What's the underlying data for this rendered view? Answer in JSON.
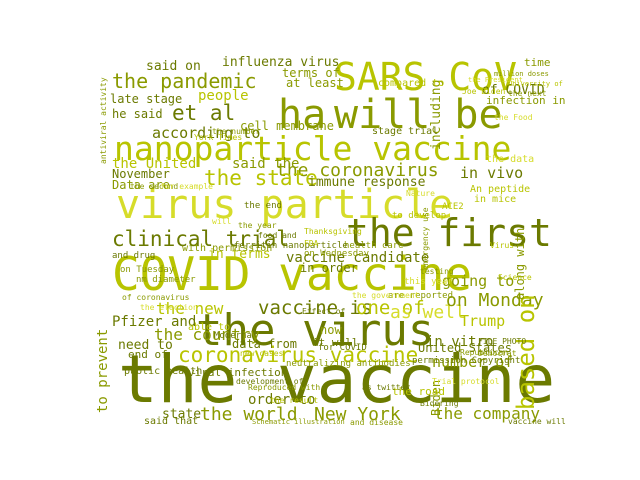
{
  "palette": {
    "background": "#ffffff",
    "dark_olive": "#6b7a00",
    "olive": "#8a9a00",
    "yellow_green": "#b8c400",
    "bright": "#d6dc2a"
  },
  "words": [
    {
      "text": "the vaccine",
      "color": "#6b7a00"
    },
    {
      "text": "COVID vaccine",
      "color": "#b8c400"
    },
    {
      "text": "virus particle",
      "color": "#d6dc2a"
    },
    {
      "text": "nanoparticle vaccine",
      "color": "#b8c400"
    },
    {
      "text": "the virus",
      "color": "#6b7a00"
    },
    {
      "text": "SARS CoV",
      "color": "#b8c400"
    },
    {
      "text": "will be",
      "color": "#8a9a00"
    },
    {
      "text": "ha",
      "color": "#8a9a00"
    },
    {
      "text": "the first",
      "color": "#6b7a00"
    },
    {
      "text": "clinical trial",
      "color": "#6b7a00"
    },
    {
      "text": "coronavirus vaccine",
      "color": "#b8c400"
    },
    {
      "text": "the pandemic",
      "color": "#8a9a00"
    },
    {
      "text": "the coronavirus",
      "color": "#8a9a00"
    },
    {
      "text": "et al",
      "color": "#6b7a00"
    },
    {
      "text": "the state",
      "color": "#b8c400"
    },
    {
      "text": "vaccine is",
      "color": "#6b7a00"
    },
    {
      "text": "one of",
      "color": "#b8c400"
    },
    {
      "text": "as well",
      "color": "#d6dc2a"
    },
    {
      "text": "the world",
      "color": "#8a9a00"
    },
    {
      "text": "New York",
      "color": "#8a9a00"
    },
    {
      "text": "the company",
      "color": "#8a9a00"
    },
    {
      "text": "on Monday",
      "color": "#8a9a00"
    },
    {
      "text": "the country",
      "color": "#8a9a00"
    },
    {
      "text": "vaccine candidate",
      "color": "#6b7a00"
    },
    {
      "text": "based on",
      "color": "#b8c400"
    },
    {
      "text": "going to",
      "color": "#8a9a00"
    },
    {
      "text": "the new",
      "color": "#b8c400"
    },
    {
      "text": "Pfizer and",
      "color": "#6b7a00"
    },
    {
      "text": "number of",
      "color": "#8a9a00"
    },
    {
      "text": "according to",
      "color": "#6b7a00"
    },
    {
      "text": "influenza virus",
      "color": "#6b7a00"
    },
    {
      "text": "said on",
      "color": "#6b7a00"
    },
    {
      "text": "said the",
      "color": "#8a9a00"
    },
    {
      "text": "in vivo",
      "color": "#6b7a00"
    },
    {
      "text": "in vitro",
      "color": "#6b7a00"
    },
    {
      "text": "immune response",
      "color": "#6b7a00"
    },
    {
      "text": "the United",
      "color": "#b8c400"
    },
    {
      "text": "United States",
      "color": "#6b7a00"
    },
    {
      "text": "to prevent",
      "color": "#8a9a00"
    },
    {
      "text": "need to",
      "color": "#6b7a00"
    },
    {
      "text": "late stage",
      "color": "#6b7a00"
    },
    {
      "text": "he said",
      "color": "#6b7a00"
    },
    {
      "text": "of COVID",
      "color": "#6b7a00"
    },
    {
      "text": "including",
      "color": "#8a9a00"
    },
    {
      "text": "cell membrane",
      "color": "#8a9a00"
    },
    {
      "text": "Trump",
      "color": "#b8c400"
    },
    {
      "text": "order to",
      "color": "#6b7a00"
    },
    {
      "text": "state",
      "color": "#6b7a00"
    },
    {
      "text": "at least",
      "color": "#8a9a00"
    },
    {
      "text": "terms of",
      "color": "#8a9a00"
    },
    {
      "text": "people",
      "color": "#b8c400"
    },
    {
      "text": "in order",
      "color": "#6b7a00"
    },
    {
      "text": "November",
      "color": "#6b7a00"
    },
    {
      "text": "Data are",
      "color": "#8a9a00"
    },
    {
      "text": "in terms",
      "color": "#b8c400"
    },
    {
      "text": "data from",
      "color": "#6b7a00"
    },
    {
      "text": "Biden",
      "color": "#8a9a00"
    },
    {
      "text": "the road",
      "color": "#b8c400"
    },
    {
      "text": "along with",
      "color": "#8a9a00"
    },
    {
      "text": "now",
      "color": "#8a9a00"
    },
    {
      "text": "it will",
      "color": "#6b7a00"
    },
    {
      "text": "end of",
      "color": "#6b7a00"
    },
    {
      "text": "viral infection",
      "color": "#6b7a00"
    },
    {
      "text": "public health",
      "color": "#6b7a00"
    },
    {
      "text": "said that",
      "color": "#6b7a00"
    },
    {
      "text": "with permission",
      "color": "#8a9a00"
    },
    {
      "text": "time",
      "color": "#8a9a00"
    },
    {
      "text": "infection in",
      "color": "#8a9a00"
    },
    {
      "text": "stage trial",
      "color": "#6b7a00"
    },
    {
      "text": "compared to",
      "color": "#b8c400"
    },
    {
      "text": "the data",
      "color": "#d6dc2a"
    },
    {
      "text": "nm diameter",
      "color": "#8a9a00"
    },
    {
      "text": "for COVID",
      "color": "#6b7a00"
    },
    {
      "text": "neutralizing antibodies",
      "color": "#8a9a00"
    },
    {
      "text": "on Wednesday",
      "color": "#8a9a00"
    },
    {
      "text": "An peptide",
      "color": "#b8c400"
    },
    {
      "text": "in mice",
      "color": "#b8c400"
    },
    {
      "text": "permission Copyright",
      "color": "#6b7a00"
    },
    {
      "text": "ACE2",
      "color": "#b8c400"
    },
    {
      "text": "the end",
      "color": "#6b7a00"
    },
    {
      "text": "able to",
      "color": "#b8c400"
    },
    {
      "text": "are reported",
      "color": "#8a9a00"
    },
    {
      "text": "this year",
      "color": "#d6dc2a"
    },
    {
      "text": "to develop",
      "color": "#b8c400"
    },
    {
      "text": "health care",
      "color": "#8a9a00"
    },
    {
      "text": "the second",
      "color": "#8a9a00"
    },
    {
      "text": "for example",
      "color": "#d6dc2a"
    },
    {
      "text": "million doses",
      "color": "#8a9a00"
    },
    {
      "text": "Joe Biden",
      "color": "#b8c400"
    },
    {
      "text": "York Times",
      "color": "#b8c400"
    },
    {
      "text": "the number",
      "color": "#8a9a00"
    },
    {
      "text": "Moderna",
      "color": "#6b7a00"
    },
    {
      "text": "development of",
      "color": "#6b7a00"
    },
    {
      "text": "the result",
      "color": "#b8c400"
    },
    {
      "text": "Reproduced with",
      "color": "#8a9a00"
    },
    {
      "text": "as twitter",
      "color": "#6b7a00"
    },
    {
      "text": "vaccine will",
      "color": "#6b7a00"
    },
    {
      "text": "and disease",
      "color": "#8a9a00"
    },
    {
      "text": "Schematic illustration",
      "color": "#8a9a00"
    },
    {
      "text": "Effect of",
      "color": "#6b7a00"
    },
    {
      "text": "FILE PHOTO",
      "color": "#6b7a00"
    },
    {
      "text": "Republican",
      "color": "#8a9a00"
    },
    {
      "text": "Democrat",
      "color": "#8a9a00"
    },
    {
      "text": "ferritin nanoparticle",
      "color": "#6b7a00"
    },
    {
      "text": "and drug",
      "color": "#6b7a00"
    },
    {
      "text": "on Tuesday",
      "color": "#8a9a00"
    },
    {
      "text": "the year",
      "color": "#8a9a00"
    },
    {
      "text": "of coronavirus",
      "color": "#8a9a00"
    },
    {
      "text": "the election",
      "color": "#d6dc2a"
    },
    {
      "text": "antiviral activity",
      "color": "#8a9a00"
    },
    {
      "text": "Bidering",
      "color": "#6b7a00"
    },
    {
      "text": "emergency use",
      "color": "#8a9a00"
    },
    {
      "text": "Virus",
      "color": "#b8c400"
    },
    {
      "text": "Science",
      "color": "#b8c400"
    },
    {
      "text": "University of",
      "color": "#b8c400"
    },
    {
      "text": "the next",
      "color": "#8a9a00"
    },
    {
      "text": "the Food",
      "color": "#d6dc2a"
    },
    {
      "text": "the President",
      "color": "#d6dc2a"
    },
    {
      "text": "will",
      "color": "#d6dc2a"
    },
    {
      "text": "Thanksgiving",
      "color": "#b8c400"
    },
    {
      "text": "Trial protocol",
      "color": "#d6dc2a"
    },
    {
      "text": "food and",
      "color": "#6b7a00"
    },
    {
      "text": "testing",
      "color": "#8a9a00"
    },
    {
      "text": "FDA",
      "color": "#b8c400"
    },
    {
      "text": "Nature",
      "color": "#d6dc2a"
    },
    {
      "text": "the government",
      "color": "#d6dc2a"
    },
    {
      "text": "new cases",
      "color": "#b8c400"
    }
  ]
}
